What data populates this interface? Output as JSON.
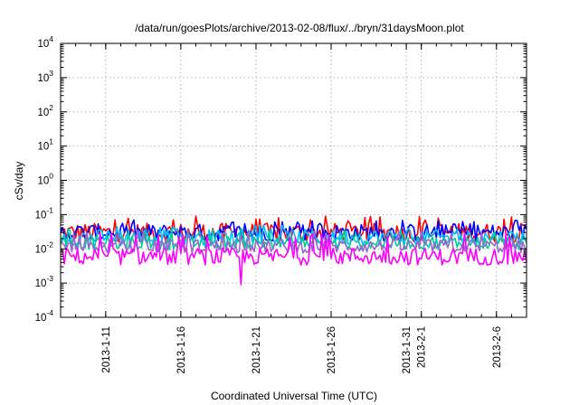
{
  "chart_data": {
    "type": "line",
    "title": "/data/run/goesPlots/archive/2013-02-08/flux/../bryn/31daysMoon.plot",
    "xlabel": "Coordinated Universal Time (UTC)",
    "ylabel": "cSv/day",
    "xlim": [
      "2013-01-08",
      "2013-02-08"
    ],
    "ylim": [
      0.0001,
      10000
    ],
    "yscale": "log",
    "grid": true,
    "legend": "none",
    "xticks": [
      {
        "date": "2013-01-11",
        "label": "2013-1-11"
      },
      {
        "date": "2013-01-16",
        "label": "2013-1-16"
      },
      {
        "date": "2013-01-21",
        "label": "2013-1-21"
      },
      {
        "date": "2013-01-26",
        "label": "2013-1-26"
      },
      {
        "date": "2013-01-31",
        "label": "2013-1-31"
      },
      {
        "date": "2013-02-01",
        "label": "2013-2-1"
      },
      {
        "date": "2013-02-06",
        "label": "2013-2-6"
      }
    ],
    "yticks": [
      {
        "value": 0.0001,
        "base": "10",
        "exp": "-4"
      },
      {
        "value": 0.001,
        "base": "10",
        "exp": "-3"
      },
      {
        "value": 0.01,
        "base": "10",
        "exp": "-2"
      },
      {
        "value": 0.1,
        "base": "10",
        "exp": "-1"
      },
      {
        "value": 1,
        "base": "10",
        "exp": "0"
      },
      {
        "value": 10,
        "base": "10",
        "exp": "1"
      },
      {
        "value": 100,
        "base": "10",
        "exp": "2"
      },
      {
        "value": 1000,
        "base": "10",
        "exp": "3"
      },
      {
        "value": 10000,
        "base": "10",
        "exp": "4"
      }
    ],
    "series": [
      {
        "color": "#ff0000",
        "base": 0.03,
        "spread": 0.55,
        "spike": 0.09,
        "peaks": [
          {
            "date": "2013-01-17",
            "value": 0.09
          }
        ]
      },
      {
        "color": "#0000ff",
        "base": 0.03,
        "spread": 0.5,
        "spike": 0.07,
        "peaks": []
      },
      {
        "color": "#00bfff",
        "base": 0.022,
        "spread": 0.45,
        "spike": 0.05,
        "peaks": []
      },
      {
        "color": "#00cc99",
        "base": 0.015,
        "spread": 0.4,
        "spike": 0.04,
        "peaks": []
      },
      {
        "color": "#9966cc",
        "base": 0.012,
        "spread": 0.4,
        "spike": 0.035,
        "peaks": []
      },
      {
        "color": "#ff00ff",
        "base": 0.006,
        "spread": 0.5,
        "spike": 0.03,
        "peaks": [
          {
            "date": "2013-01-20",
            "value": 0.0009
          }
        ]
      }
    ]
  }
}
